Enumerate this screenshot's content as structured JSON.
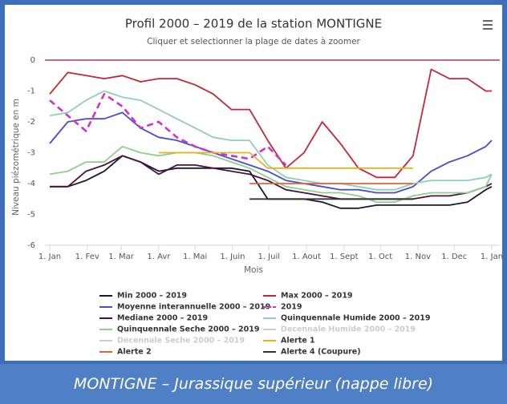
{
  "chart_data": {
    "type": "line",
    "title": "Profil 2000 – 2019 de la station MONTIGNE",
    "subtitle": "Cliquer et selectionner la plage de dates à zoomer",
    "y_label": "Niveau piézométrique en m",
    "x_label": "Mois",
    "caption": "MONTIGNE – Jurassique supérieur (nappe libre)",
    "xlim": [
      0,
      365
    ],
    "ylim": [
      -6,
      0
    ],
    "xticks": [
      {
        "value": 0,
        "label": "1. Jan"
      },
      {
        "value": 31,
        "label": "1. Fev"
      },
      {
        "value": 59,
        "label": "1. Mar"
      },
      {
        "value": 90,
        "label": "1. Avr"
      },
      {
        "value": 120,
        "label": "1. Mai"
      },
      {
        "value": 151,
        "label": "1. Juin"
      },
      {
        "value": 181,
        "label": "1. Juil"
      },
      {
        "value": 212,
        "label": "1. Aout"
      },
      {
        "value": 243,
        "label": "1. Sept"
      },
      {
        "value": 273,
        "label": "1. Oct"
      },
      {
        "value": 304,
        "label": "1. Nov"
      },
      {
        "value": 334,
        "label": "1. Dec"
      },
      {
        "value": 365,
        "label": "1. Jan"
      }
    ],
    "yticks": [
      -6,
      -5,
      -4,
      -3,
      -2,
      -1,
      0
    ],
    "grid": false,
    "plot_line": {
      "value": 0,
      "color": "#8b1a4a"
    },
    "x": [
      0,
      15,
      30,
      45,
      60,
      75,
      90,
      105,
      120,
      135,
      150,
      165,
      180,
      195,
      210,
      225,
      240,
      255,
      270,
      285,
      300,
      315,
      330,
      345,
      360,
      365
    ],
    "series": [
      {
        "name": "Min 2000 – 2019",
        "color": "#1a1a2e",
        "values": [
          -4.1,
          -4.1,
          -3.9,
          -3.6,
          -3.1,
          -3.3,
          -3.6,
          -3.5,
          -3.5,
          -3.5,
          -3.5,
          -3.6,
          -4.5,
          -4.5,
          -4.5,
          -4.6,
          -4.8,
          -4.8,
          -4.7,
          -4.7,
          -4.7,
          -4.7,
          -4.7,
          -4.6,
          -4.2,
          -4.1
        ]
      },
      {
        "name": "Max 2000 – 2019",
        "color": "#c0283b",
        "values": [
          -1.1,
          -0.4,
          -0.5,
          -0.6,
          -0.5,
          -0.7,
          -0.6,
          -0.6,
          -0.8,
          -1.1,
          -1.6,
          -1.6,
          -2.6,
          -3.5,
          -3.0,
          -2.0,
          -2.7,
          -3.5,
          -3.8,
          -3.8,
          -3.1,
          -0.3,
          -0.6,
          -0.6,
          -1.0,
          -1.0
        ]
      },
      {
        "name": "Moyenne interannuelle 2000 – 2019",
        "color": "#4b4bd0",
        "values": [
          -2.7,
          -2.0,
          -1.9,
          -1.9,
          -1.7,
          -2.2,
          -2.5,
          -2.6,
          -2.8,
          -3.0,
          -3.2,
          -3.4,
          -3.6,
          -3.9,
          -4.0,
          -4.1,
          -4.2,
          -4.2,
          -4.3,
          -4.3,
          -4.1,
          -3.6,
          -3.3,
          -3.1,
          -2.8,
          -2.6
        ]
      },
      {
        "name": "2019",
        "color": "#cc33cc",
        "dash": true,
        "values": [
          -1.3,
          -1.8,
          -2.3,
          -1.1,
          -1.5,
          -2.2,
          -2.0,
          -2.5,
          -2.8,
          -3.0,
          -3.1,
          -3.2,
          -2.8,
          -3.4,
          null,
          null,
          null,
          null,
          null,
          null,
          null,
          null,
          null,
          null,
          null,
          null
        ]
      },
      {
        "name": "Mediane 2000 – 2019",
        "color": "#4a1040",
        "values": [
          -4.1,
          -4.1,
          -3.6,
          -3.4,
          -3.1,
          -3.3,
          -3.7,
          -3.4,
          -3.4,
          -3.5,
          -3.6,
          -3.7,
          -3.9,
          -4.2,
          -4.3,
          -4.4,
          -4.5,
          -4.5,
          -4.5,
          -4.5,
          -4.5,
          -4.4,
          -4.4,
          -4.3,
          -4.1,
          -4.0
        ]
      },
      {
        "name": "Quinquennale Humide 2000 – 2019",
        "color": "#8fd0b4",
        "values": [
          -1.8,
          -1.7,
          -1.3,
          -1.0,
          -1.2,
          -1.3,
          -1.6,
          -1.9,
          -2.2,
          -2.5,
          -2.6,
          -2.6,
          -3.4,
          -3.8,
          -3.9,
          -4.0,
          -4.0,
          -4.1,
          -4.2,
          -4.2,
          -4.0,
          -3.9,
          -3.9,
          -3.9,
          -3.8,
          -3.7
        ]
      },
      {
        "name": "Quinquennale Seche 2000 – 2019",
        "color": "#8ed08a",
        "values": [
          -3.7,
          -3.6,
          -3.3,
          -3.3,
          -2.8,
          -3.0,
          -3.1,
          -3.0,
          -3.0,
          -3.1,
          -3.3,
          -3.5,
          -3.8,
          -4.1,
          -4.2,
          -4.3,
          -4.3,
          -4.4,
          -4.6,
          -4.6,
          -4.4,
          -4.3,
          -4.3,
          -4.3,
          -4.1,
          -3.7
        ]
      },
      {
        "name": "Decennale Humide 2000 – 2019",
        "color": "#cccccc",
        "visible": false
      },
      {
        "name": "Decennale Seche 2000 – 2019",
        "color": "#cccccc",
        "visible": false
      },
      {
        "name": "Alerte 1",
        "color": "#e3b321",
        "values": [
          null,
          null,
          null,
          null,
          null,
          null,
          -3.0,
          -3.0,
          -3.0,
          -3.0,
          -3.0,
          -3.0,
          -3.5,
          -3.5,
          -3.5,
          -3.5,
          -3.5,
          -3.5,
          -3.5,
          -3.5,
          -3.5,
          null,
          null,
          null,
          null,
          null
        ]
      },
      {
        "name": "Alerte 2",
        "color": "#e0643a",
        "values": [
          null,
          null,
          null,
          null,
          null,
          null,
          null,
          null,
          null,
          null,
          null,
          -4.0,
          -4.0,
          -4.0,
          -4.0,
          -4.0,
          -4.0,
          -4.0,
          -4.0,
          -4.0,
          -4.0,
          null,
          null,
          null,
          null,
          null
        ]
      },
      {
        "name": "Alerte 4 (Coupure)",
        "color": "#333333",
        "values": [
          null,
          null,
          null,
          null,
          null,
          null,
          null,
          null,
          null,
          null,
          null,
          -4.5,
          -4.5,
          -4.5,
          -4.5,
          -4.5,
          -4.5,
          -4.5,
          -4.5,
          -4.5,
          -4.5,
          null,
          null,
          null,
          null,
          null
        ]
      }
    ]
  }
}
